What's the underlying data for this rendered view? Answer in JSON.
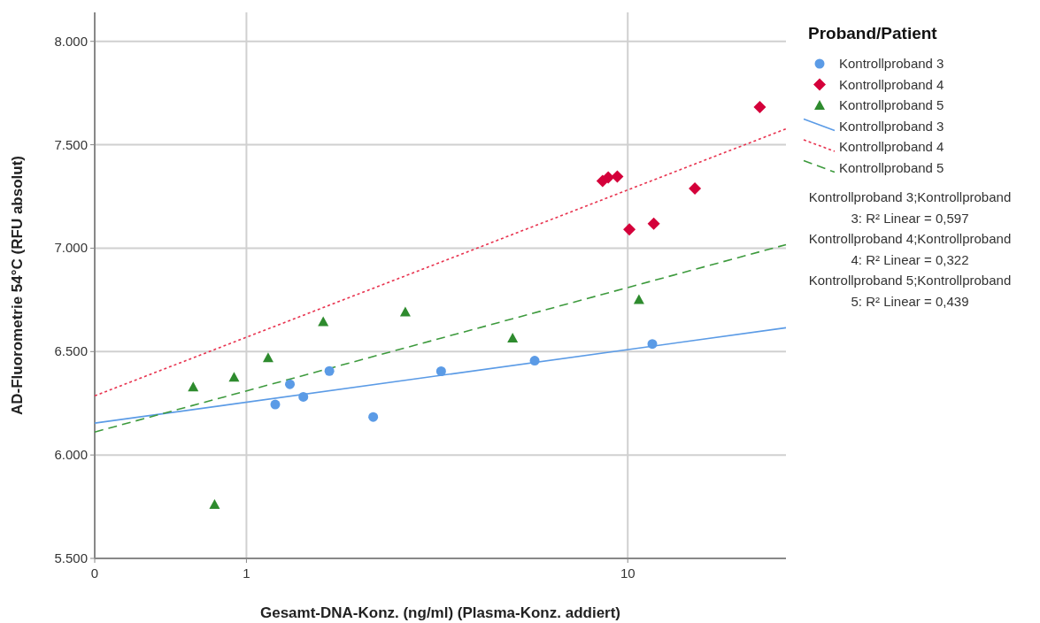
{
  "chart_data": {
    "type": "scatter",
    "xlabel": "Gesamt-DNA-Konz. (ng/ml) (Plasma-Konz. addiert)",
    "ylabel": "AD-Fluorometrie 54°C (RFU absolut)",
    "legend_title": "Proband/Patient",
    "legend": "right",
    "grid": true,
    "log": "x",
    "xlim": [
      0.4,
      26
    ],
    "xticks": [
      {
        "value": 0.4,
        "label": "0"
      },
      1,
      10
    ],
    "ylim": [
      5500,
      8140
    ],
    "yticks": [
      {
        "value": 5500,
        "label": "5.500"
      },
      {
        "value": 6000,
        "label": "6.000"
      },
      {
        "value": 6500,
        "label": "6.500"
      },
      {
        "value": 7000,
        "label": "7.000"
      },
      {
        "value": 7500,
        "label": "7.500"
      },
      {
        "value": 8000,
        "label": "8.000"
      }
    ],
    "series": [
      {
        "name": "Kontrollproband 3",
        "marker": "circle",
        "color": "#5b9be6",
        "x": [
          1.19,
          1.3,
          1.41,
          1.65,
          2.15,
          3.24,
          5.7,
          11.6
        ],
        "values": [
          6244,
          6342,
          6281,
          6406,
          6184,
          6405,
          6456,
          6537
        ]
      },
      {
        "name": "Kontrollproband 4",
        "marker": "diamond",
        "color": "#d4003a",
        "x": [
          8.59,
          8.89,
          9.39,
          10.1,
          11.7,
          15,
          22.2
        ],
        "values": [
          7325,
          7342,
          7346,
          7091,
          7118,
          7289,
          7682
        ]
      },
      {
        "name": "Kontrollproband 5",
        "marker": "triangle",
        "color": "#2e8b2e",
        "x": [
          0.725,
          0.825,
          0.928,
          1.14,
          1.59,
          2.61,
          4.99,
          10.7
        ],
        "values": [
          6329,
          5761,
          6376,
          6470,
          6645,
          6692,
          6565,
          6752
        ]
      },
      {
        "name": "Kontrollproband 3",
        "type": "line",
        "line_style": "solid",
        "color": "#5b9be6",
        "x": [
          0.4,
          26
        ],
        "values": [
          6154,
          6615
        ]
      },
      {
        "name": "Kontrollproband 4",
        "type": "line",
        "line_style": "dotted",
        "color": "#e8334f",
        "x": [
          0.4,
          26
        ],
        "values": [
          6286,
          7577
        ]
      },
      {
        "name": "Kontrollproband 5",
        "type": "line",
        "line_style": "dashed",
        "color": "#3d9a3d",
        "x": [
          0.4,
          26
        ],
        "values": [
          6111,
          7017
        ]
      }
    ],
    "annotations": [
      "Kontrollproband 3;Kontrollproband 3: R² Linear = 0,597",
      "Kontrollproband 4;Kontrollproband 4: R² Linear = 0,322",
      "Kontrollproband 5;Kontrollproband 5: R² Linear = 0,439"
    ]
  }
}
